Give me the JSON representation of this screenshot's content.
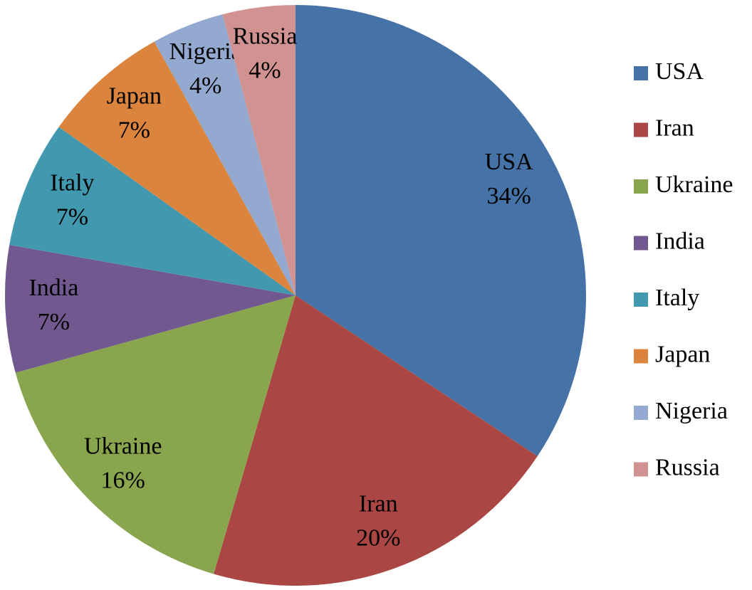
{
  "chart_data": {
    "type": "pie",
    "categories": [
      "USA",
      "Iran",
      "Ukraine",
      "India",
      "Italy",
      "Japan",
      "Nigeria",
      "Russia"
    ],
    "values": [
      34,
      20,
      16,
      7,
      7,
      7,
      4,
      4
    ],
    "value_labels": [
      "34%",
      "20%",
      "16%",
      "7%",
      "7%",
      "7%",
      "4%",
      "4%"
    ],
    "colors": [
      "#4572a7",
      "#aa4643",
      "#89a54e",
      "#71588f",
      "#4198af",
      "#db843d",
      "#93a9cf",
      "#d19392"
    ],
    "legend": "right"
  }
}
